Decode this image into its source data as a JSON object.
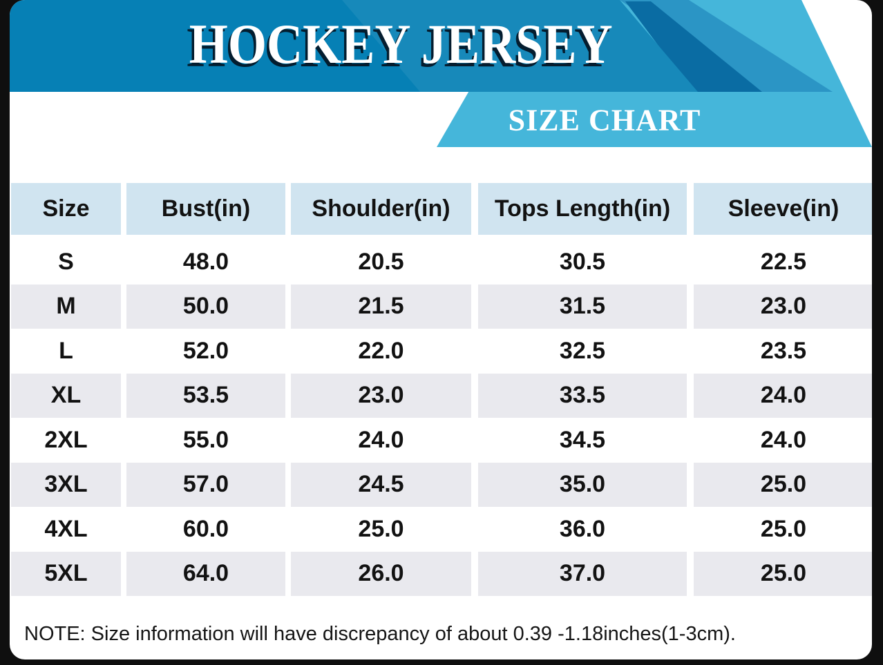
{
  "header": {
    "title": "HOCKEY JERSEY",
    "banner": "SIZE CHART"
  },
  "table": {
    "columns": [
      "Size",
      "Bust(in)",
      "Shoulder(in)",
      "Tops Length(in)",
      "Sleeve(in)"
    ],
    "rows": [
      {
        "size": "S",
        "bust": "48.0",
        "shoulder": "20.5",
        "tops_length": "30.5",
        "sleeve": "22.5"
      },
      {
        "size": "M",
        "bust": "50.0",
        "shoulder": "21.5",
        "tops_length": "31.5",
        "sleeve": "23.0"
      },
      {
        "size": "L",
        "bust": "52.0",
        "shoulder": "22.0",
        "tops_length": "32.5",
        "sleeve": "23.5"
      },
      {
        "size": "XL",
        "bust": "53.5",
        "shoulder": "23.0",
        "tops_length": "33.5",
        "sleeve": "24.0"
      },
      {
        "size": "2XL",
        "bust": "55.0",
        "shoulder": "24.0",
        "tops_length": "34.5",
        "sleeve": "24.0"
      },
      {
        "size": "3XL",
        "bust": "57.0",
        "shoulder": "24.5",
        "tops_length": "35.0",
        "sleeve": "25.0"
      },
      {
        "size": "4XL",
        "bust": "60.0",
        "shoulder": "25.0",
        "tops_length": "36.0",
        "sleeve": "25.0"
      },
      {
        "size": "5XL",
        "bust": "64.0",
        "shoulder": "26.0",
        "tops_length": "37.0",
        "sleeve": "25.0"
      }
    ]
  },
  "note": "NOTE: Size information will have discrepancy of about 0.39 -1.18inches(1-3cm).",
  "chart_data": {
    "type": "table",
    "title": "HOCKEY JERSEY SIZE CHART",
    "columns": [
      "Size",
      "Bust(in)",
      "Shoulder(in)",
      "Tops Length(in)",
      "Sleeve(in)"
    ],
    "rows": [
      [
        "S",
        48.0,
        20.5,
        30.5,
        22.5
      ],
      [
        "M",
        50.0,
        21.5,
        31.5,
        23.0
      ],
      [
        "L",
        52.0,
        22.0,
        32.5,
        23.5
      ],
      [
        "XL",
        53.5,
        23.0,
        33.5,
        24.0
      ],
      [
        "2XL",
        55.0,
        24.0,
        34.5,
        24.0
      ],
      [
        "3XL",
        57.0,
        24.5,
        35.0,
        25.0
      ],
      [
        "4XL",
        60.0,
        25.0,
        36.0,
        25.0
      ],
      [
        "5XL",
        64.0,
        26.0,
        37.0,
        25.0
      ]
    ],
    "footnote": "NOTE: Size information will have discrepancy of about 0.39 -1.18inches(1-3cm)."
  },
  "colors": {
    "main-blue": "#0680b5",
    "stripe-dark": "#0a6ca3",
    "stripe-light": "#2b95c5",
    "cyan": "#45b6da",
    "th-bg": "#d0e4f0",
    "alt-bg": "#e9e9ee",
    "frame": "#0f0f0f",
    "ink": "#121212"
  }
}
